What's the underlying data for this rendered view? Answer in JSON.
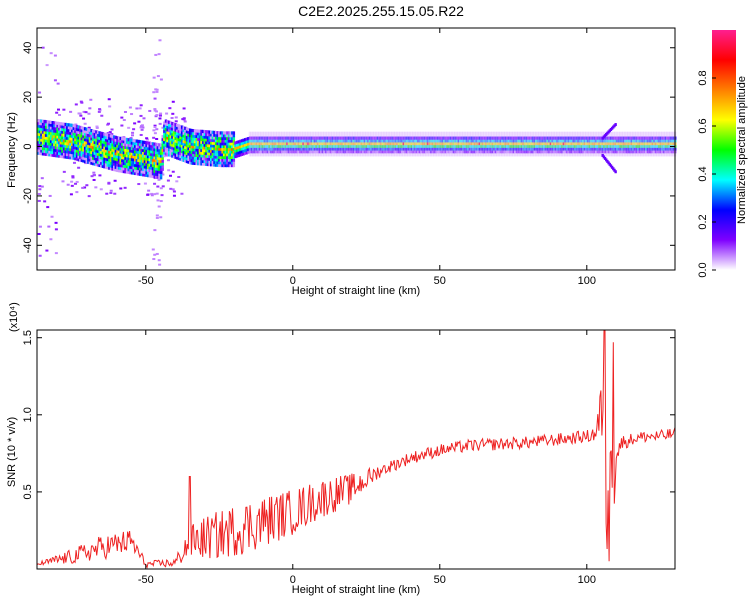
{
  "title": "C2E2.2025.255.15.05.R22",
  "chart_data": [
    {
      "type": "heatmap",
      "xlabel": "Height of straight line (km)",
      "ylabel": "Frequency (Hz)",
      "xlim": [
        -87,
        130
      ],
      "ylim": [
        -50,
        48
      ],
      "xticks": [
        -50,
        0,
        50,
        100
      ],
      "yticks": [
        -40,
        -20,
        0,
        20,
        40
      ],
      "colorbar": {
        "label": "Normalized spectral amplitude",
        "range": [
          0,
          1
        ],
        "ticks": [
          "0.0",
          "0.2",
          "0.4",
          "0.6",
          "0.8"
        ],
        "tick_values": [
          0,
          0.2,
          0.4,
          0.6,
          0.8
        ],
        "colormap": [
          "#ffffff",
          "#7f00ff",
          "#0000ff",
          "#00ffff",
          "#00ff00",
          "#ffff00",
          "#ff7f00",
          "#ff0000",
          "#ff1f8f"
        ]
      },
      "center_freq_profile": {
        "x": [
          -87,
          -75,
          -60,
          -50,
          -45,
          -44,
          -35,
          -25,
          -20,
          -15,
          0,
          20,
          50,
          100,
          130
        ],
        "y": [
          4,
          2,
          -3,
          -5,
          -6,
          4,
          0,
          -1,
          -1,
          1,
          1,
          1,
          1,
          1,
          1
        ]
      },
      "band_halfwidth_hz": 3,
      "features": [
        {
          "x": 107,
          "note": "signal tail splitting to +4 / -7 Hz"
        }
      ]
    },
    {
      "type": "line",
      "xlabel": "Height of straight line (km)",
      "ylabel": "SNR (10 * v/v)",
      "yscale_label": "(x10⁴)",
      "xlim": [
        -87,
        130
      ],
      "ylim": [
        0,
        1.55
      ],
      "xticks": [
        -50,
        0,
        50,
        100
      ],
      "yticks": [
        0.5,
        1.0,
        1.5
      ],
      "ytick_labels": [
        "0.5",
        "1.0",
        "1.5"
      ],
      "color": "#ee2222",
      "series": [
        {
          "x": [
            -87,
            -75,
            -65,
            -55,
            -50,
            -40,
            -35,
            -25,
            -15,
            0,
            10,
            20,
            30,
            40,
            50,
            60,
            70,
            80,
            90,
            100,
            103,
            105,
            106,
            107,
            108,
            109,
            110,
            112,
            115,
            120,
            125,
            130
          ],
          "y": [
            0.03,
            0.08,
            0.14,
            0.18,
            0.03,
            0.04,
            0.18,
            0.22,
            0.28,
            0.37,
            0.46,
            0.52,
            0.64,
            0.72,
            0.77,
            0.8,
            0.81,
            0.82,
            0.84,
            0.86,
            0.88,
            1.02,
            0.55,
            0.2,
            1.05,
            0.5,
            0.75,
            0.82,
            0.84,
            0.86,
            0.86,
            0.88
          ],
          "noise": [
            0.01,
            0.05,
            0.08,
            0.08,
            0.02,
            0.03,
            0.12,
            0.16,
            0.18,
            0.15,
            0.13,
            0.1,
            0.04,
            0.04,
            0.04,
            0.04,
            0.04,
            0.04,
            0.04,
            0.04,
            0.06,
            0.25,
            0.3,
            0.2,
            0.3,
            0.25,
            0.1,
            0.05,
            0.04,
            0.04,
            0.04,
            0.04
          ],
          "peaks": [
            {
              "x": -35,
              "y": 0.6
            },
            {
              "x": 106,
              "y": 1.57
            },
            {
              "x": 107.5,
              "y": 0.05
            },
            {
              "x": 109,
              "y": 1.47
            }
          ]
        }
      ]
    }
  ]
}
